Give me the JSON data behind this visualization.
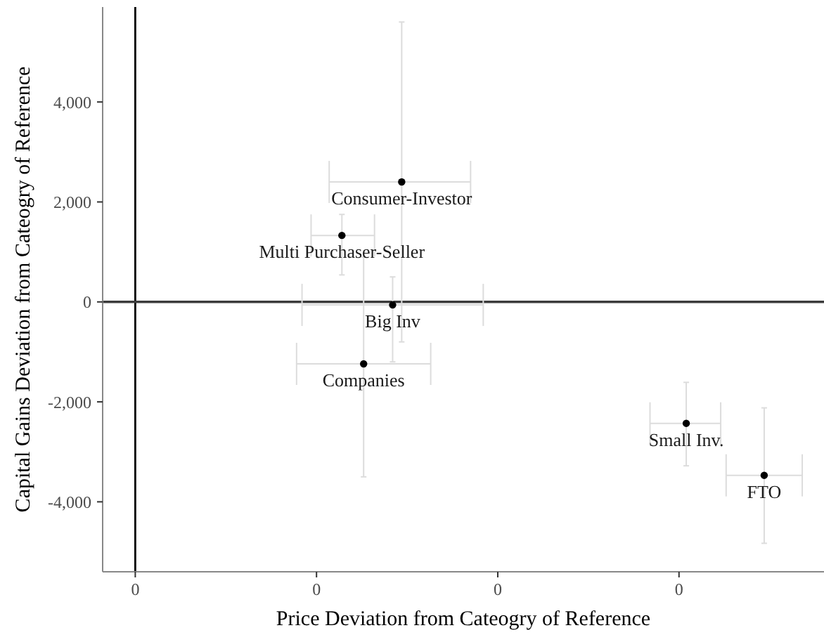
{
  "chart_data": {
    "type": "scatter",
    "xlabel": "Price Deviation from Cateogry of Reference",
    "ylabel": "Capital Gains Deviation from Cateogry of Reference",
    "xlim": [
      -0.018,
      0.38
    ],
    "xticks": [
      0,
      {
        "value": 0.1,
        "label": "0"
      },
      {
        "value": 0.2,
        "label": "0"
      },
      {
        "value": 0.3,
        "label": "0"
      }
    ],
    "ylim": [
      -5400,
      5900
    ],
    "yticks": [
      {
        "value": -4000,
        "label": "-4,000"
      },
      {
        "value": -2000,
        "label": "-2,000"
      },
      0,
      {
        "value": 2000,
        "label": "2,000"
      },
      {
        "value": 4000,
        "label": "4,000"
      }
    ],
    "marker": "circle",
    "series": [
      {
        "color": "#000000",
        "x": [
          0.147,
          0.114,
          0.142,
          0.126,
          0.304,
          0.347
        ],
        "values": [
          2400,
          1330,
          -60,
          -1240,
          -2430,
          -3470
        ],
        "errors": [
          [
            -800,
            5600
          ],
          [
            540,
            1750
          ],
          [
            -1200,
            500
          ],
          [
            -3500,
            900
          ],
          [
            -3280,
            -1610
          ],
          [
            -4830,
            -2120
          ]
        ],
        "xerrors": [
          [
            0.107,
            0.185
          ],
          [
            0.097,
            0.132
          ],
          [
            0.092,
            0.192
          ],
          [
            0.089,
            0.163
          ],
          [
            0.284,
            0.323
          ],
          [
            0.326,
            0.368
          ]
        ]
      }
    ],
    "ref_lines": [
      {
        "axis": "x",
        "value": 0,
        "color": "#000000"
      },
      {
        "axis": "y",
        "value": 0,
        "color": "#3c3c3c"
      }
    ],
    "annotations": [
      {
        "text": "Consumer-Investor",
        "x": 0.147,
        "y": 2400
      },
      {
        "text": "Multi Purchaser-Seller",
        "x": 0.114,
        "y": 1330
      },
      {
        "text": "Big Inv",
        "x": 0.142,
        "y": -60
      },
      {
        "text": "Companies",
        "x": 0.126,
        "y": -1240
      },
      {
        "text": "Small Inv.",
        "x": 0.304,
        "y": -2430
      },
      {
        "text": "FTO",
        "x": 0.347,
        "y": -3470
      }
    ]
  }
}
